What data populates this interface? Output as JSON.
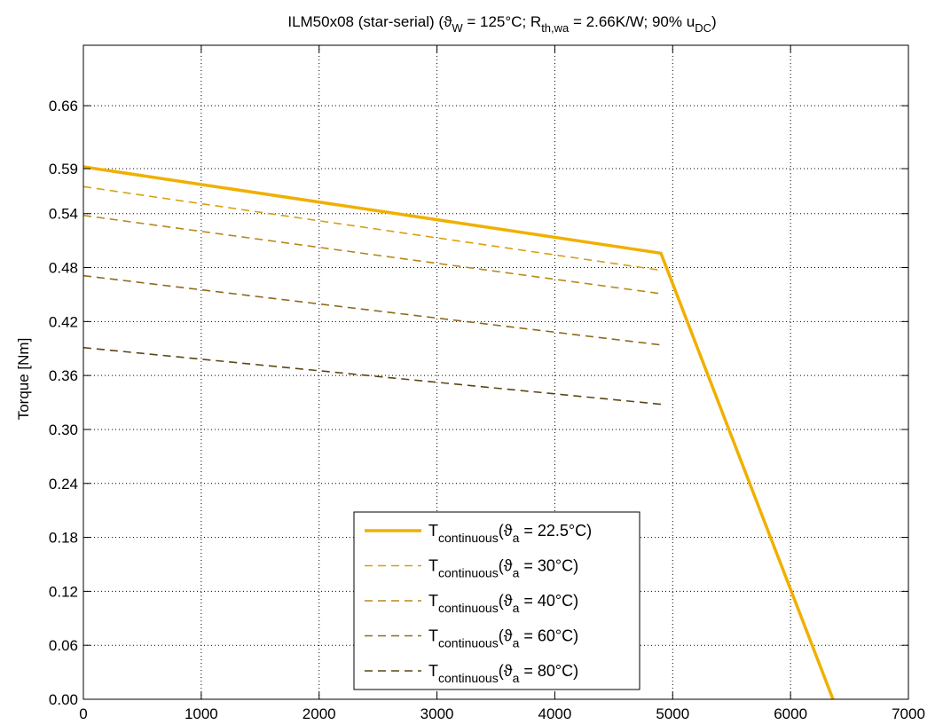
{
  "chart_data": {
    "type": "line",
    "title": {
      "main": "ILM50x08 (star-serial) (",
      "sym_theta": "ϑ",
      "sub_w": "W",
      "part2": " = 125°C; R",
      "sub_th": "th,wa",
      "part3": " = 2.66K/W; 90% u",
      "sub_dc": "DC",
      "part4": ")"
    },
    "xlabel": "",
    "ylabel": "Torque [Nm]",
    "xlim": [
      0,
      7000
    ],
    "ylim": [
      0,
      0.7272
    ],
    "x_ticks": [
      "0",
      "1000",
      "2000",
      "3000",
      "4000",
      "5000",
      "6000",
      "7000"
    ],
    "x_tick_values": [
      0,
      1000,
      2000,
      3000,
      4000,
      5000,
      6000,
      7000
    ],
    "y_ticks": [
      "0.00",
      "0.06",
      "0.12",
      "0.18",
      "0.24",
      "0.30",
      "0.36",
      "0.42",
      "0.48",
      "0.54",
      "0.59",
      "0.66"
    ],
    "y_tick_values": [
      0.0,
      0.06,
      0.12,
      0.18,
      0.24,
      0.3,
      0.36,
      0.42,
      0.48,
      0.54,
      0.59,
      0.66
    ],
    "grid": true,
    "legend_position": "bottom-center",
    "series": [
      {
        "name_main": "T",
        "name_sub": "continuous",
        "name_open": "(",
        "name_theta": "ϑ",
        "name_sub_a": "a",
        "name_rest": " = 22.5°C)",
        "style": "solid",
        "color": "#f0b000",
        "width": 3.5,
        "x": [
          0,
          4900,
          6360
        ],
        "y": [
          0.592,
          0.496,
          0.0
        ]
      },
      {
        "name_main": "T",
        "name_sub": "continuous",
        "name_open": "(",
        "name_theta": "ϑ",
        "name_sub_a": "a",
        "name_rest": " = 30°C)",
        "style": "dashed",
        "color": "#d8a010",
        "width": 1.6,
        "x": [
          0,
          4900
        ],
        "y": [
          0.57,
          0.477
        ]
      },
      {
        "name_main": "T",
        "name_sub": "continuous",
        "name_open": "(",
        "name_theta": "ϑ",
        "name_sub_a": "a",
        "name_rest": " = 40°C)",
        "style": "dashed",
        "color": "#b88818",
        "width": 1.6,
        "x": [
          0,
          4900
        ],
        "y": [
          0.538,
          0.451
        ]
      },
      {
        "name_main": "T",
        "name_sub": "continuous",
        "name_open": "(",
        "name_theta": "ϑ",
        "name_sub_a": "a",
        "name_rest": " = 60°C)",
        "style": "dashed",
        "color": "#8c6a1c",
        "width": 1.6,
        "x": [
          0,
          4900
        ],
        "y": [
          0.471,
          0.394
        ]
      },
      {
        "name_main": "T",
        "name_sub": "continuous",
        "name_open": "(",
        "name_theta": "ϑ",
        "name_sub_a": "a",
        "name_rest": " = 80°C)",
        "style": "dashed",
        "color": "#5c4516",
        "width": 1.6,
        "x": [
          0,
          4900
        ],
        "y": [
          0.391,
          0.328
        ]
      }
    ]
  }
}
